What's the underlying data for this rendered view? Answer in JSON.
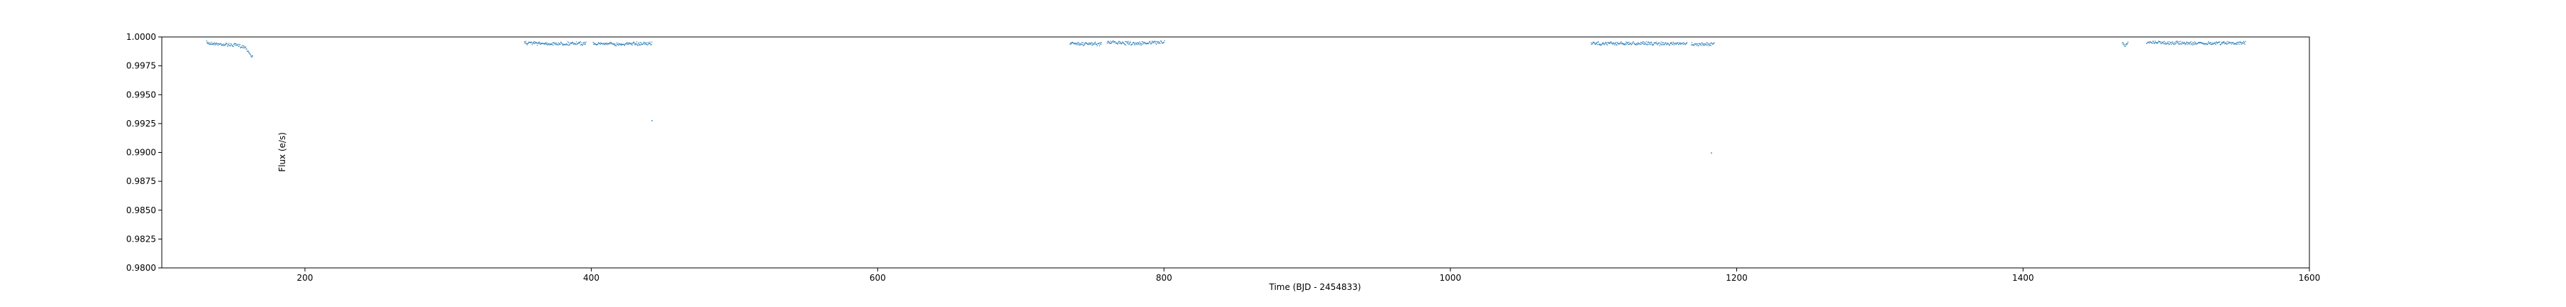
{
  "chart_data": {
    "type": "scatter",
    "title": "",
    "xlabel": "Time (BJD - 2454833)",
    "ylabel": "Flux (e/s)",
    "xlim": [
      100,
      1600
    ],
    "ylim": [
      0.98,
      1.0
    ],
    "xticks": [
      200,
      400,
      600,
      800,
      1000,
      1200,
      1400,
      1600
    ],
    "xtick_labels": [
      "200",
      "400",
      "600",
      "800",
      "1000",
      "1200",
      "1400",
      "1600"
    ],
    "yticks": [
      0.98,
      0.9825,
      0.985,
      0.9875,
      0.99,
      0.9925,
      0.995,
      0.9975,
      1.0
    ],
    "ytick_labels": [
      "0.9800",
      "0.9825",
      "0.9850",
      "0.9875",
      "0.9900",
      "0.9925",
      "0.9950",
      "0.9975",
      "1.0000"
    ],
    "grid": false,
    "marker_color": "#1f77b4",
    "segments": [
      {
        "x": [
          131,
          140,
          150,
          158,
          163
        ],
        "y": [
          0.99965,
          0.99955,
          0.99945,
          0.9993,
          0.9984
        ]
      },
      {
        "x": [
          353,
          372,
          392,
          396
        ],
        "y": [
          0.99965,
          0.99958,
          0.9996,
          0.9996
        ]
      },
      {
        "x": [
          401,
          420,
          442
        ],
        "y": [
          0.9996,
          0.99955,
          0.9996
        ]
      },
      {
        "x": [
          734,
          745,
          756
        ],
        "y": [
          0.9996,
          0.99955,
          0.99955
        ]
      },
      {
        "x": [
          760,
          780,
          800
        ],
        "y": [
          0.9997,
          0.9996,
          0.9997
        ]
      },
      {
        "x": [
          1098,
          1130,
          1165
        ],
        "y": [
          0.9996,
          0.9996,
          0.99955
        ]
      },
      {
        "x": [
          1168,
          1176,
          1184
        ],
        "y": [
          0.99955,
          0.9995,
          0.99955
        ]
      },
      {
        "x": [
          1469,
          1471,
          1473
        ],
        "y": [
          0.9997,
          0.9994,
          0.9996
        ]
      },
      {
        "x": [
          1486,
          1520,
          1555
        ],
        "y": [
          0.9997,
          0.9996,
          0.99965
        ]
      }
    ],
    "outliers": {
      "x": [
        442,
        1182,
        163
      ],
      "y": [
        0.9928,
        0.99,
        0.9984
      ]
    }
  }
}
